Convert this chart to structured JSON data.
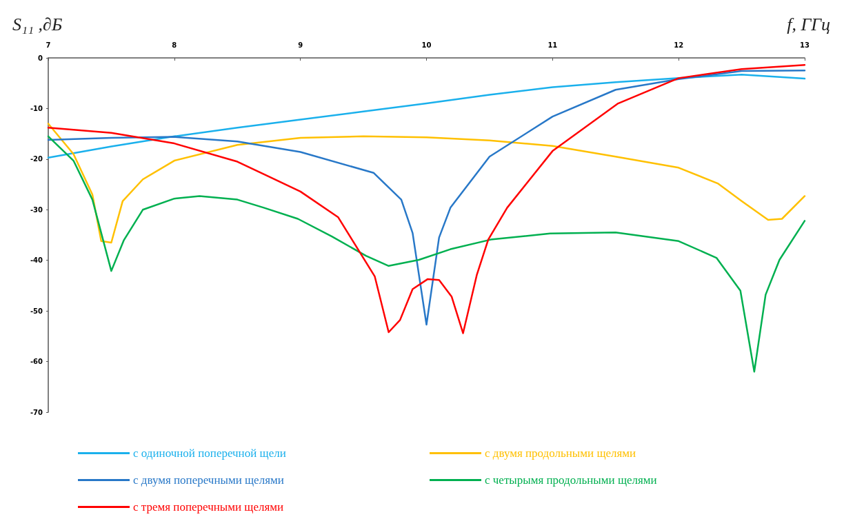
{
  "chart_data": {
    "type": "line",
    "xlabel": "f, ГГц",
    "ylabel": "S₁₁ ,∂Б",
    "xlim": [
      7,
      13
    ],
    "xticks": [
      7,
      8,
      9,
      10,
      11,
      12,
      13
    ],
    "ylim": [
      -70,
      0
    ],
    "yticks": [
      -70,
      -60,
      -50,
      -40,
      -30,
      -20,
      -10,
      0
    ],
    "grid": false,
    "legend": "bottom",
    "marker": "none",
    "line_style": "solid",
    "series": [
      {
        "name": "с одиночной поперечной щели",
        "color": "#1ab0ec",
        "x": [
          7,
          7.5,
          8,
          8.5,
          9,
          9.5,
          10,
          10.5,
          11,
          11.5,
          12,
          12.5,
          13
        ],
        "values": [
          -19.7,
          -17.5,
          -15.5,
          -13.8,
          -12.2,
          -10.6,
          -9,
          -7.3,
          -5.8,
          -4.8,
          -4,
          -3.3,
          -4.1
        ]
      },
      {
        "name": "с двумя продольными щелями",
        "color": "#ffc000",
        "x": [
          7,
          7.2,
          7.35,
          7.42,
          7.5,
          7.59,
          7.75,
          8,
          8.5,
          9,
          9.5,
          10,
          10.5,
          11,
          11.5,
          12,
          12.31,
          12.5,
          12.71,
          12.82,
          13
        ],
        "values": [
          -13,
          -19,
          -27,
          -36.2,
          -36.5,
          -28.3,
          -24,
          -20.3,
          -17.2,
          -15.8,
          -15.5,
          -15.7,
          -16.3,
          -17.4,
          -19.5,
          -21.7,
          -24.8,
          -28.3,
          -32,
          -31.8,
          -27.3
        ]
      },
      {
        "name": "с двумя поперечными щелями",
        "color": "#2878c8",
        "x": [
          7,
          7.5,
          8,
          8.5,
          9,
          9.58,
          9.8,
          9.89,
          10,
          10.1,
          10.19,
          10.5,
          11,
          11.5,
          12,
          12.5,
          13
        ],
        "values": [
          -16.2,
          -15.8,
          -15.6,
          -16.5,
          -18.6,
          -22.7,
          -28,
          -34.6,
          -52.7,
          -35.5,
          -29.6,
          -19.5,
          -11.6,
          -6.3,
          -4.2,
          -2.6,
          -2.5
        ]
      },
      {
        "name": "с четырымя продольными щелями",
        "color": "#00b050",
        "x": [
          7,
          7.2,
          7.35,
          7.5,
          7.6,
          7.75,
          8,
          8.2,
          8.5,
          8.71,
          8.98,
          9.25,
          9.52,
          9.7,
          9.94,
          10.19,
          10.51,
          10.98,
          11.5,
          12,
          12.3,
          12.49,
          12.6,
          12.69,
          12.8,
          13
        ],
        "values": [
          -15.5,
          -20.3,
          -28,
          -42.1,
          -36,
          -30,
          -27.8,
          -27.3,
          -28,
          -29.6,
          -31.8,
          -35.3,
          -39.1,
          -41.1,
          -39.9,
          -37.8,
          -35.9,
          -34.7,
          -34.5,
          -36.2,
          -39.5,
          -46,
          -62,
          -46.8,
          -39.9,
          -32.2
        ]
      },
      {
        "name": "с тремя поперечными щелями",
        "color": "#ff0000",
        "x": [
          7,
          7.5,
          8,
          8.5,
          9,
          9.3,
          9.59,
          9.7,
          9.79,
          9.89,
          10.01,
          10.1,
          10.2,
          10.29,
          10.4,
          10.49,
          10.64,
          11,
          11.52,
          12,
          12.5,
          13
        ],
        "values": [
          -13.8,
          -14.8,
          -16.9,
          -20.5,
          -26.4,
          -31.5,
          -43.2,
          -54.2,
          -51.8,
          -45.7,
          -43.7,
          -43.9,
          -47.2,
          -54.4,
          -42.8,
          -35.9,
          -29.6,
          -18.4,
          -9,
          -4,
          -2.2,
          -1.4
        ]
      }
    ]
  }
}
